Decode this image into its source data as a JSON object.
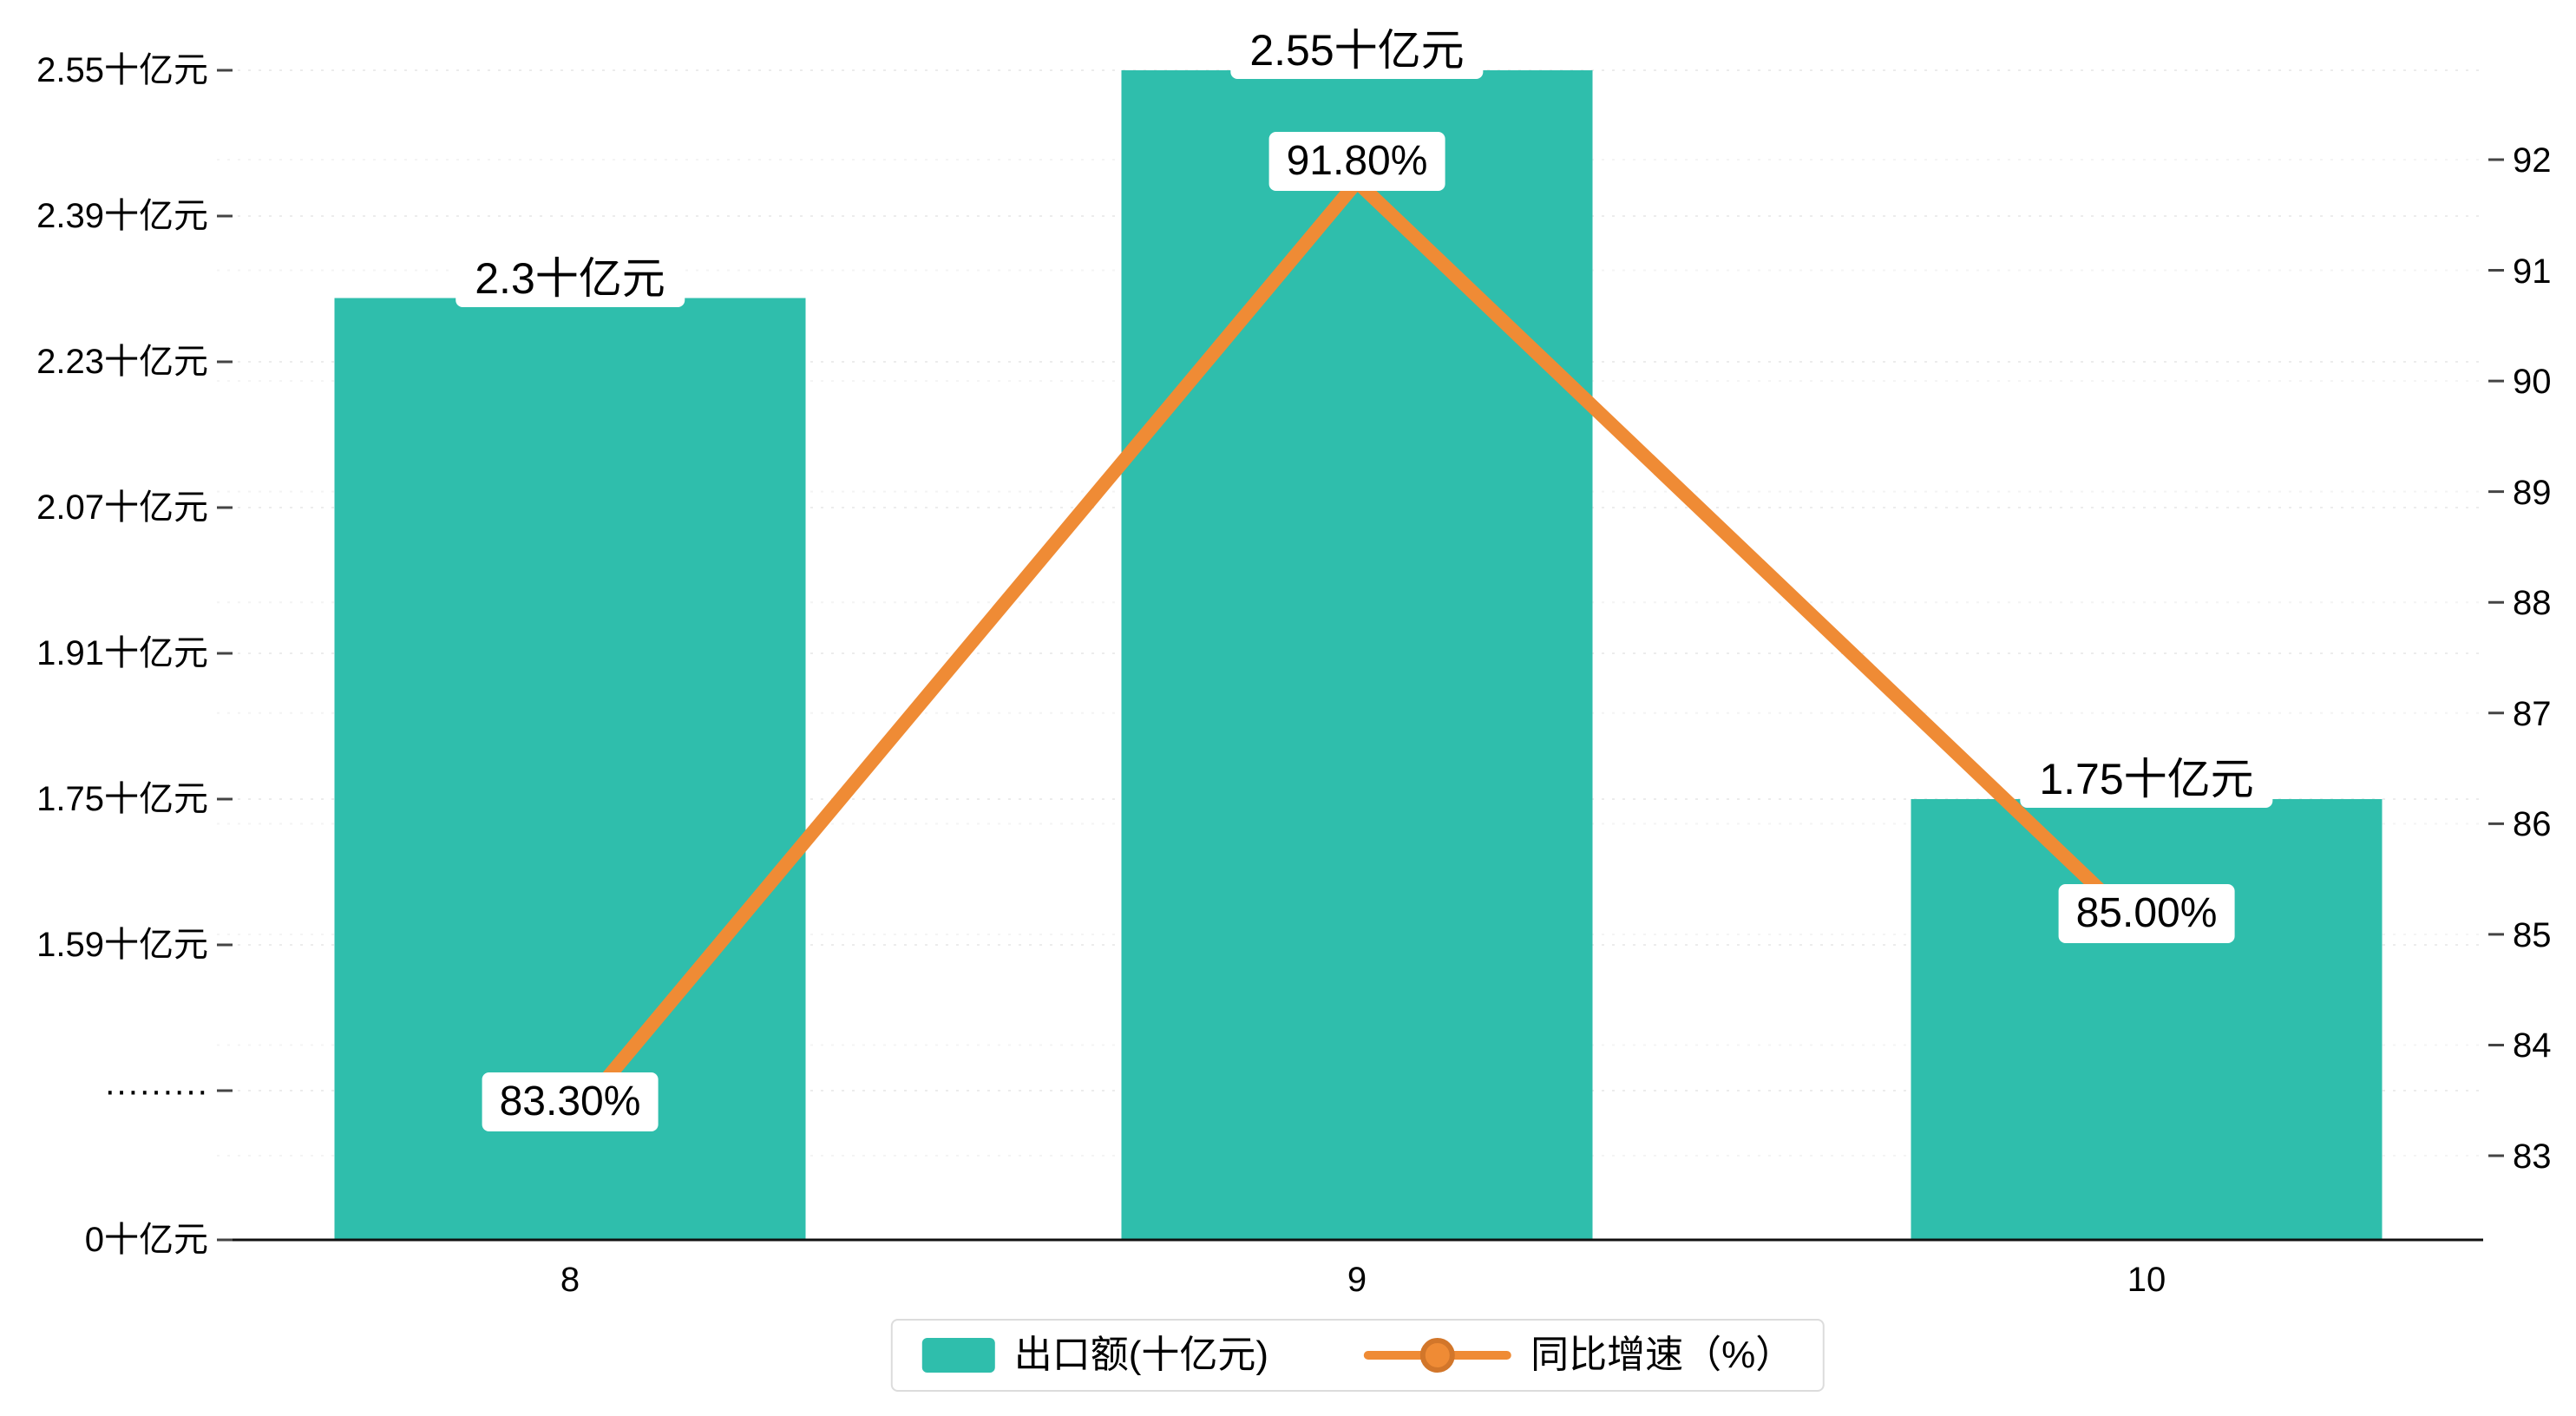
{
  "chart_data": {
    "type": "combo-bar-line",
    "categories": [
      "8",
      "9",
      "10"
    ],
    "series": [
      {
        "name": "出口额(十亿元)",
        "type": "bar",
        "values": [
          2.3,
          2.55,
          1.75
        ],
        "value_labels": [
          "2.3十亿元",
          "2.55十亿元",
          "1.75十亿元"
        ],
        "color": "#2FBEAC"
      },
      {
        "name": "同比增速（%）",
        "type": "line",
        "values": [
          83.3,
          91.8,
          85.0
        ],
        "value_labels": [
          "83.30%",
          "91.80%",
          "85.00%"
        ],
        "color": "#EF8B35"
      }
    ],
    "left_axis": {
      "tick_labels": [
        "2.55十亿元",
        "2.39十亿元",
        "2.23十亿元",
        "2.07十亿元",
        "1.91十亿元",
        "1.75十亿元",
        "1.59十亿元",
        "·········",
        "0十亿元"
      ],
      "tick_values": [
        2.55,
        2.39,
        2.23,
        2.07,
        1.91,
        1.75,
        1.59,
        null,
        0
      ],
      "broken": true
    },
    "right_axis": {
      "tick_labels": [
        "92",
        "91",
        "90",
        "89",
        "88",
        "87",
        "86",
        "85",
        "84",
        "83"
      ],
      "range": [
        83,
        92
      ]
    },
    "x_axis": {
      "tick_labels": [
        "8",
        "9",
        "10"
      ]
    },
    "legend_position": "bottom",
    "grid": true,
    "colors": {
      "bar": "#2FBEAC",
      "line": "#EF8B35",
      "grid": "#ececec",
      "grid_light": "#f4f4f4",
      "axis": "#111111",
      "tick": "#444444",
      "label_bg": "#ffffff",
      "text": "#000000"
    }
  }
}
